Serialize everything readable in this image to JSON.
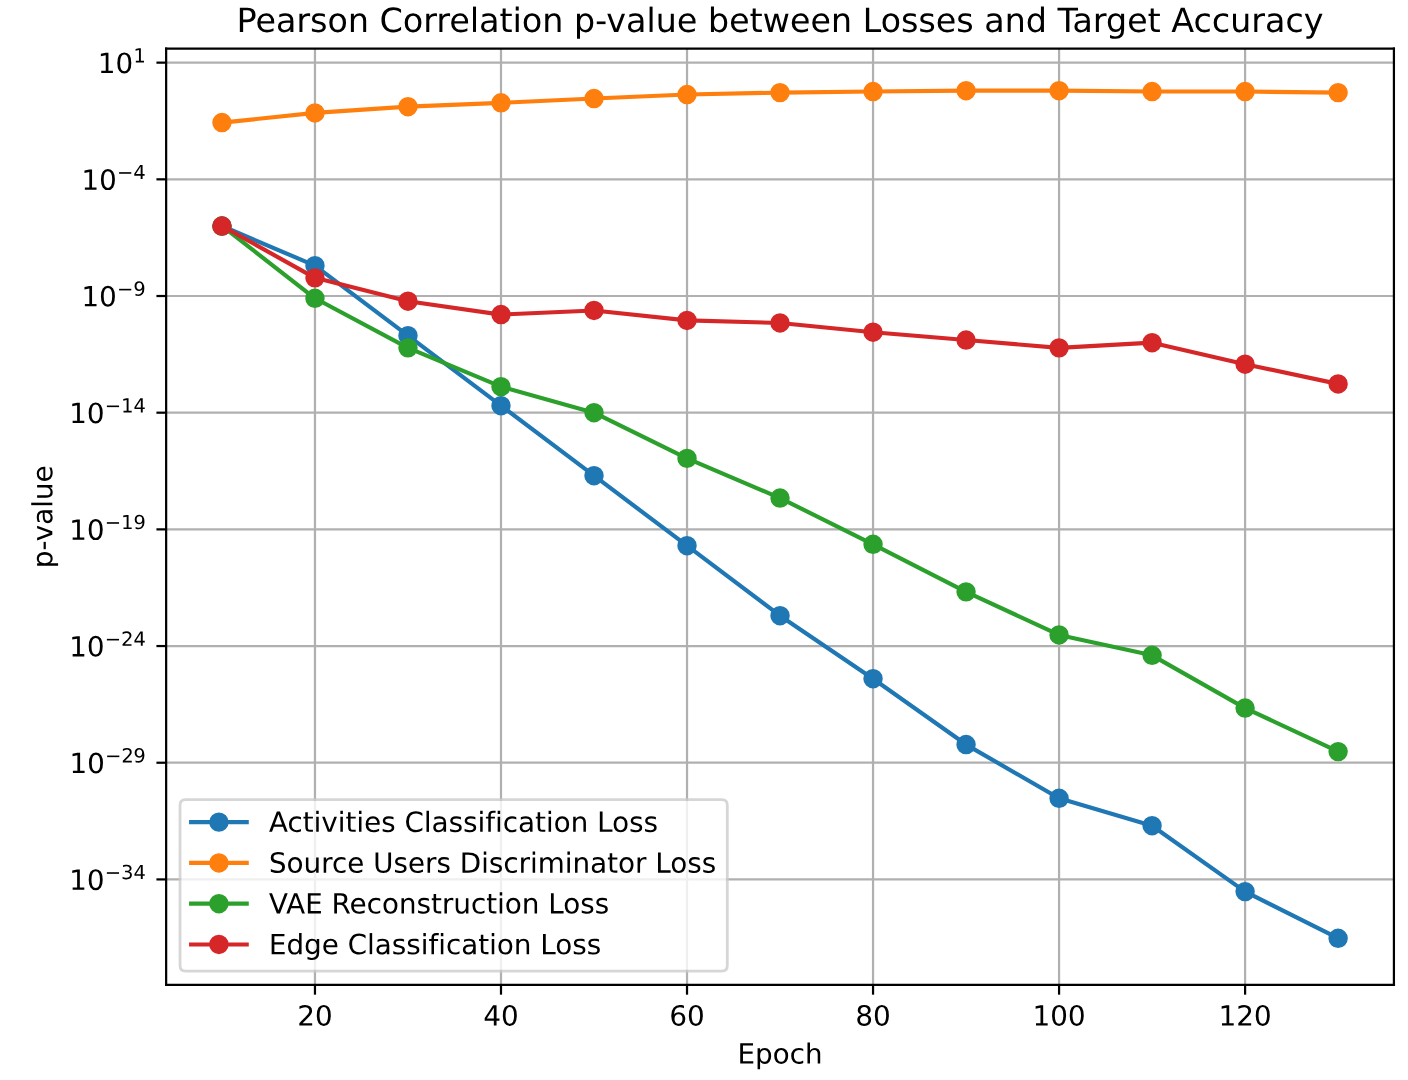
{
  "chart_data": {
    "type": "line",
    "title": "Pearson Correlation p-value between Losses and Target Accuracy",
    "xlabel": "Epoch",
    "ylabel": "p-value",
    "x": [
      10,
      20,
      30,
      40,
      50,
      60,
      70,
      80,
      90,
      100,
      110,
      120,
      130
    ],
    "series": [
      {
        "name": "Activities Classification Loss",
        "color": "#1f77b4",
        "values": [
          1e-06,
          2e-08,
          2e-11,
          2e-14,
          2e-17,
          2e-20,
          2e-23,
          4e-26,
          6e-29,
          3e-31,
          2e-32,
          3e-35,
          3e-37
        ]
      },
      {
        "name": "Source Users Discriminator Loss",
        "color": "#ff7f0e",
        "values": [
          0.027,
          0.07,
          0.13,
          0.19,
          0.29,
          0.43,
          0.52,
          0.58,
          0.63,
          0.63,
          0.58,
          0.58,
          0.52
        ]
      },
      {
        "name": "VAE Reconstruction Loss",
        "color": "#2ca02c",
        "values": [
          1e-06,
          8e-10,
          6e-12,
          1.3e-13,
          1e-14,
          1.1e-16,
          2.2e-18,
          2.3e-20,
          2.1e-22,
          3e-24,
          4e-25,
          2.2e-27,
          3e-29
        ]
      },
      {
        "name": "Edge Classification Loss",
        "color": "#d62728",
        "values": [
          1e-06,
          6e-09,
          6e-10,
          1.6e-10,
          2.4e-10,
          9e-11,
          7e-11,
          2.8e-11,
          1.3e-11,
          6e-12,
          1e-11,
          1.2e-12,
          1.7e-13
        ]
      }
    ],
    "log": "y",
    "xlim": [
      4,
      136
    ],
    "xticks": [
      20,
      40,
      60,
      80,
      100,
      120
    ],
    "ylim": [
      3e-39,
      40
    ],
    "yticks": [
      {
        "value": 1e-34,
        "label": "10$^{−34}$"
      },
      {
        "value": 1e-29,
        "label": "10$^{−29}$"
      },
      {
        "value": 1e-24,
        "label": "10$^{−24}$"
      },
      {
        "value": 1e-19,
        "label": "10$^{−19}$"
      },
      {
        "value": 1e-14,
        "label": "10$^{−14}$"
      },
      {
        "value": 1e-09,
        "label": "10$^{−9}$"
      },
      {
        "value": 0.0001,
        "label": "10$^{−4}$"
      },
      {
        "value": 10,
        "label": "10$^{1}$"
      }
    ],
    "grid": true,
    "legend": "bottom left",
    "marker": "circle",
    "line_style": "solid"
  }
}
